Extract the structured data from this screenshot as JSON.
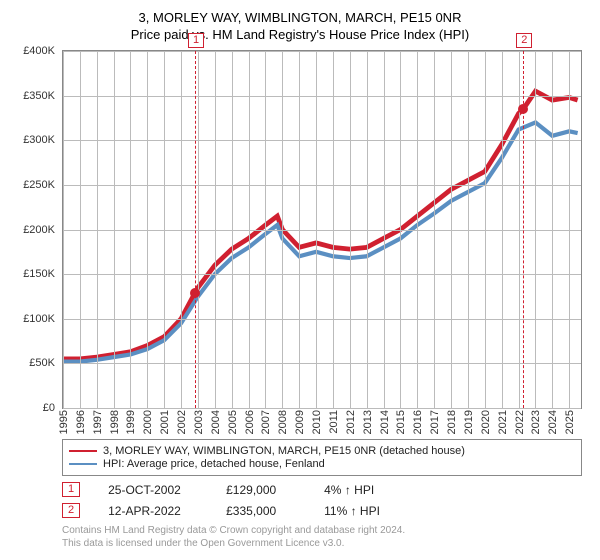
{
  "title": "3, MORLEY WAY, WIMBLINGTON, MARCH, PE15 0NR",
  "subtitle": "Price paid vs. HM Land Registry's House Price Index (HPI)",
  "chart": {
    "type": "line",
    "background_color": "#ffffff",
    "grid_color": "#bbbbbb",
    "border_color": "#888888",
    "xlim": [
      1995,
      2025.7
    ],
    "ylim": [
      0,
      400000
    ],
    "ytick_step": 50000,
    "yticks": [
      {
        "v": 0,
        "label": "£0"
      },
      {
        "v": 50000,
        "label": "£50K"
      },
      {
        "v": 100000,
        "label": "£100K"
      },
      {
        "v": 150000,
        "label": "£150K"
      },
      {
        "v": 200000,
        "label": "£200K"
      },
      {
        "v": 250000,
        "label": "£250K"
      },
      {
        "v": 300000,
        "label": "£300K"
      },
      {
        "v": 350000,
        "label": "£350K"
      },
      {
        "v": 400000,
        "label": "£400K"
      }
    ],
    "xticks": [
      1995,
      1996,
      1997,
      1998,
      1999,
      2000,
      2001,
      2002,
      2003,
      2004,
      2005,
      2006,
      2007,
      2008,
      2009,
      2010,
      2011,
      2012,
      2013,
      2014,
      2015,
      2016,
      2017,
      2018,
      2019,
      2020,
      2021,
      2022,
      2023,
      2024,
      2025
    ],
    "series": [
      {
        "name": "property",
        "label": "3, MORLEY WAY, WIMBLINGTON, MARCH, PE15 0NR (detached house)",
        "color": "#d02030",
        "line_width": 1.6,
        "data": [
          [
            1995,
            55000
          ],
          [
            1996,
            55000
          ],
          [
            1997,
            57000
          ],
          [
            1998,
            60000
          ],
          [
            1999,
            63000
          ],
          [
            2000,
            70000
          ],
          [
            2001,
            80000
          ],
          [
            2002,
            100000
          ],
          [
            2002.82,
            129000
          ],
          [
            2003,
            135000
          ],
          [
            2004,
            160000
          ],
          [
            2005,
            178000
          ],
          [
            2006,
            190000
          ],
          [
            2007,
            205000
          ],
          [
            2007.7,
            215000
          ],
          [
            2008,
            200000
          ],
          [
            2009,
            180000
          ],
          [
            2010,
            185000
          ],
          [
            2011,
            180000
          ],
          [
            2012,
            178000
          ],
          [
            2013,
            180000
          ],
          [
            2014,
            190000
          ],
          [
            2015,
            200000
          ],
          [
            2016,
            215000
          ],
          [
            2017,
            230000
          ],
          [
            2018,
            245000
          ],
          [
            2019,
            255000
          ],
          [
            2020,
            265000
          ],
          [
            2021,
            295000
          ],
          [
            2022,
            330000
          ],
          [
            2022.28,
            335000
          ],
          [
            2023,
            355000
          ],
          [
            2024,
            345000
          ],
          [
            2025,
            348000
          ],
          [
            2025.5,
            345000
          ]
        ]
      },
      {
        "name": "hpi",
        "label": "HPI: Average price, detached house, Fenland",
        "color": "#5b8fc2",
        "line_width": 1.4,
        "data": [
          [
            1995,
            52000
          ],
          [
            1996,
            52000
          ],
          [
            1997,
            54000
          ],
          [
            1998,
            57000
          ],
          [
            1999,
            60000
          ],
          [
            2000,
            66000
          ],
          [
            2001,
            76000
          ],
          [
            2002,
            95000
          ],
          [
            2003,
            125000
          ],
          [
            2004,
            150000
          ],
          [
            2005,
            168000
          ],
          [
            2006,
            180000
          ],
          [
            2007,
            195000
          ],
          [
            2007.7,
            205000
          ],
          [
            2008,
            190000
          ],
          [
            2009,
            170000
          ],
          [
            2010,
            175000
          ],
          [
            2011,
            170000
          ],
          [
            2012,
            168000
          ],
          [
            2013,
            170000
          ],
          [
            2014,
            180000
          ],
          [
            2015,
            190000
          ],
          [
            2016,
            205000
          ],
          [
            2017,
            218000
          ],
          [
            2018,
            232000
          ],
          [
            2019,
            242000
          ],
          [
            2020,
            252000
          ],
          [
            2021,
            280000
          ],
          [
            2022,
            312000
          ],
          [
            2023,
            320000
          ],
          [
            2024,
            305000
          ],
          [
            2025,
            310000
          ],
          [
            2025.5,
            308000
          ]
        ]
      }
    ],
    "markers": [
      {
        "n": "1",
        "x": 2002.82,
        "y": 129000,
        "dot_color": "#d02030",
        "label_top": true
      },
      {
        "n": "2",
        "x": 2022.28,
        "y": 335000,
        "dot_color": "#d02030",
        "label_top": true
      }
    ]
  },
  "transactions": [
    {
      "n": "1",
      "date": "25-OCT-2002",
      "price": "£129,000",
      "delta": "4%",
      "arrow": "↑",
      "suffix": "HPI"
    },
    {
      "n": "2",
      "date": "12-APR-2022",
      "price": "£335,000",
      "delta": "11%",
      "arrow": "↑",
      "suffix": "HPI"
    }
  ],
  "footer_line1": "Contains HM Land Registry data © Crown copyright and database right 2024.",
  "footer_line2": "This data is licensed under the Open Government Licence v3.0.",
  "font_family": "Arial, Helvetica, sans-serif",
  "title_fontsize": 13,
  "axis_fontsize": 11,
  "legend_fontsize": 11,
  "footer_fontsize": 10
}
